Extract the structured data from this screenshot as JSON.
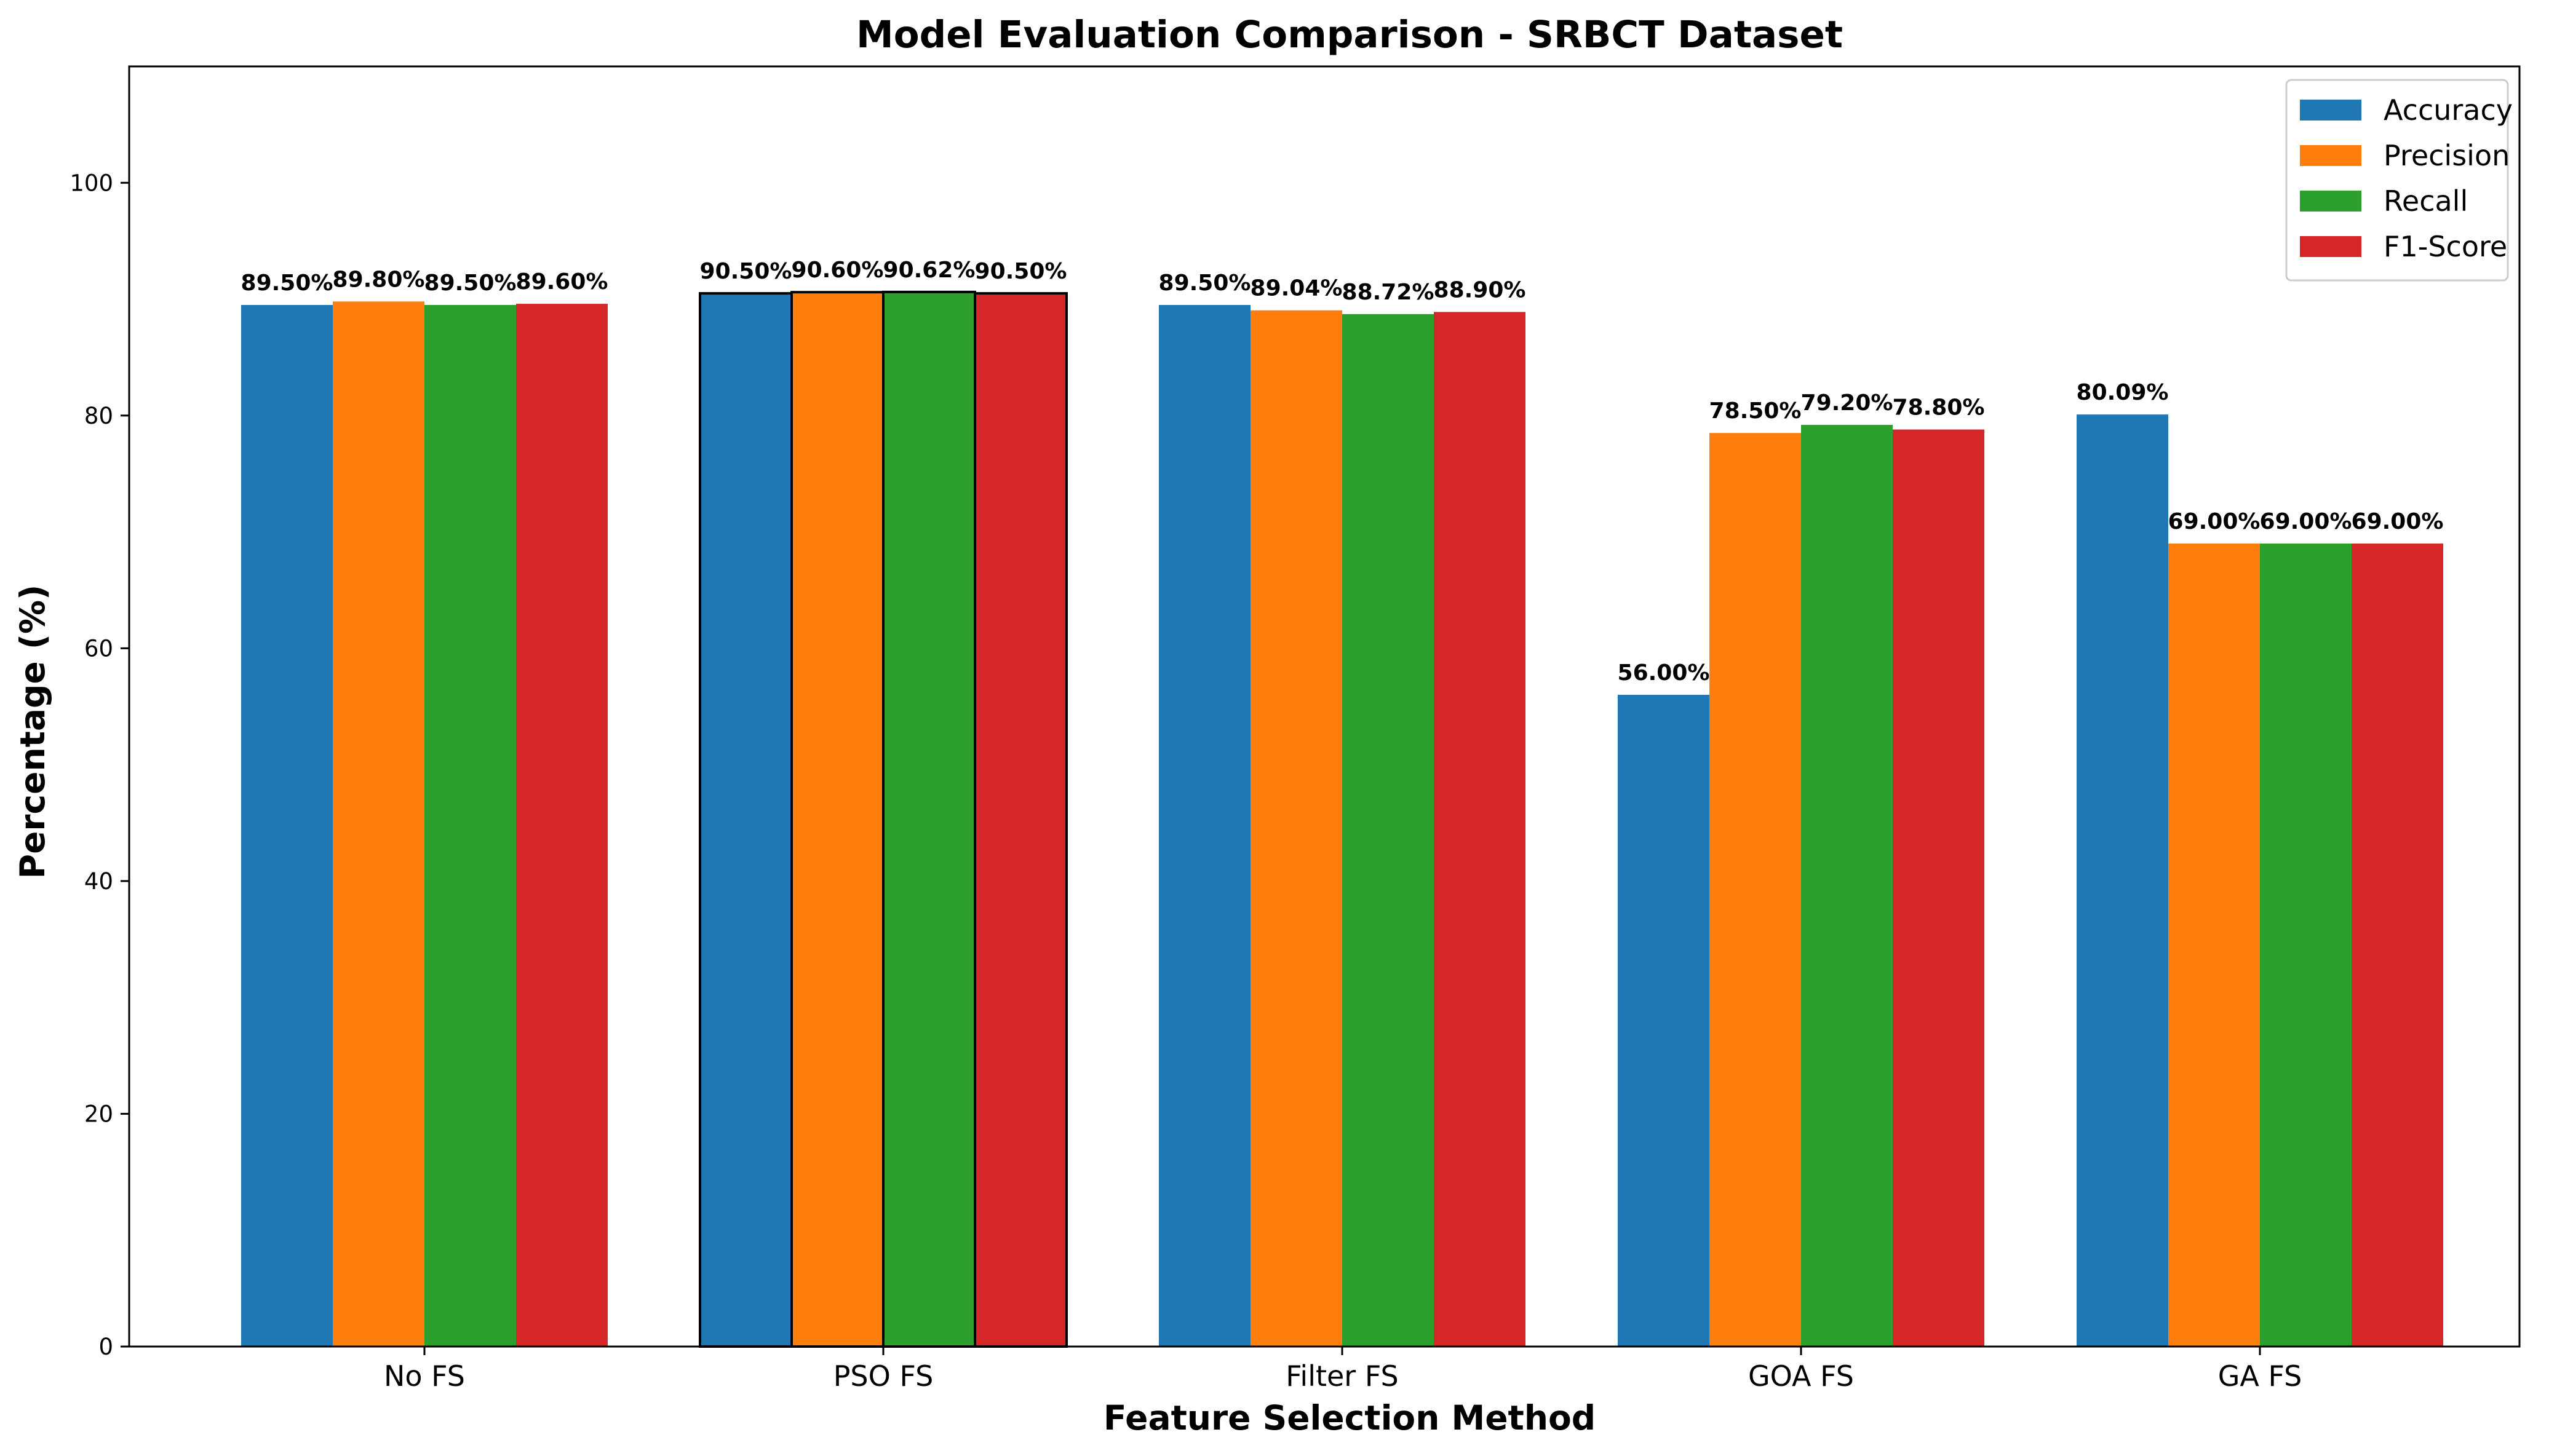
{
  "chart_data": {
    "type": "bar",
    "title": "Model Evaluation Comparison - SRBCT Dataset",
    "xlabel": "Feature Selection Method",
    "ylabel": "Percentage (%)",
    "ylim": [
      0,
      110
    ],
    "yticks": [
      0,
      20,
      40,
      60,
      80,
      100
    ],
    "categories": [
      "No FS",
      "PSO FS",
      "Filter FS",
      "GOA FS",
      "GA FS"
    ],
    "highlighted_category": "PSO FS",
    "grid": false,
    "legend_position": "top-right",
    "series": [
      {
        "name": "Accuracy",
        "color": "#1f77b4",
        "values": [
          89.5,
          90.5,
          89.5,
          56.0,
          80.09
        ],
        "labels": [
          "89.50%",
          "90.50%",
          "89.50%",
          "56.00%",
          "80.09%"
        ]
      },
      {
        "name": "Precision",
        "color": "#ff7f0e",
        "values": [
          89.8,
          90.6,
          89.04,
          78.5,
          69.0
        ],
        "labels": [
          "89.80%",
          "90.60%",
          "89.04%",
          "78.50%",
          "69.00%"
        ]
      },
      {
        "name": "Recall",
        "color": "#2ca02c",
        "values": [
          89.5,
          90.62,
          88.72,
          79.2,
          69.0
        ],
        "labels": [
          "89.50%",
          "90.62%",
          "88.72%",
          "79.20%",
          "69.00%"
        ]
      },
      {
        "name": "F1-Score",
        "color": "#d62728",
        "values": [
          89.6,
          90.5,
          88.9,
          78.8,
          69.0
        ],
        "labels": [
          "89.60%",
          "90.50%",
          "88.90%",
          "78.80%",
          "69.00%"
        ]
      }
    ]
  }
}
